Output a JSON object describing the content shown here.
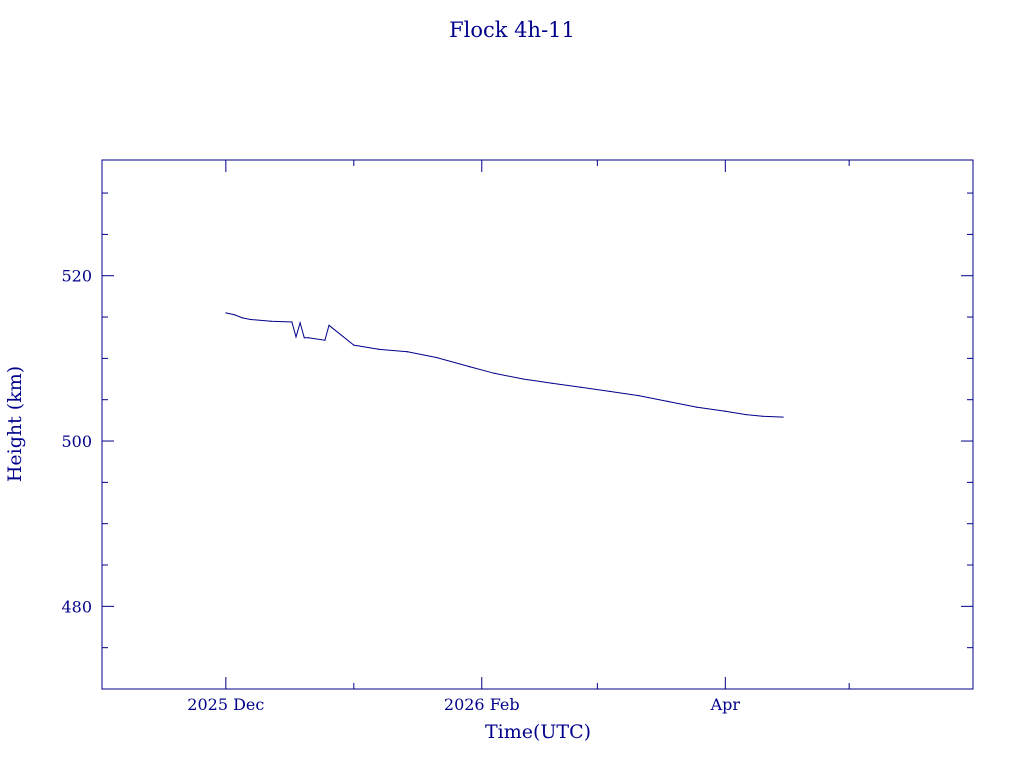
{
  "chart_data": {
    "type": "line",
    "title": "Flock 4h-11",
    "xlabel": "Time(UTC)",
    "ylabel": "Height (km)",
    "x_axis_type": "date",
    "xlim": [
      "2025-11-01",
      "2026-05-31"
    ],
    "ylim": [
      470,
      534
    ],
    "x_ticks": [
      {
        "value": "2025-12-01",
        "label": "2025 Dec"
      },
      {
        "value": "2026-02-01",
        "label": "2026 Feb"
      },
      {
        "value": "2026-04-01",
        "label": "Apr"
      }
    ],
    "y_ticks": [
      {
        "value": 480,
        "label": "480"
      },
      {
        "value": 500,
        "label": "500"
      },
      {
        "value": 520,
        "label": "520"
      }
    ],
    "grid": false,
    "color": "#00008b",
    "series": [
      {
        "x": [
          "2025-12-01",
          "2025-12-03",
          "2025-12-05",
          "2025-12-07",
          "2025-12-12",
          "2025-12-17",
          "2025-12-18",
          "2025-12-19",
          "2025-12-20",
          "2025-12-21",
          "2025-12-25",
          "2025-12-26",
          "2026-01-01",
          "2026-01-07",
          "2026-01-14",
          "2026-01-21",
          "2026-01-29",
          "2026-02-04",
          "2026-02-11",
          "2026-02-18",
          "2026-02-25",
          "2026-03-04",
          "2026-03-11",
          "2026-03-18",
          "2026-03-25",
          "2026-04-01",
          "2026-04-06",
          "2026-04-10",
          "2026-04-15"
        ],
        "y": [
          515.5,
          515.3,
          514.9,
          514.7,
          514.5,
          514.4,
          512.6,
          514.3,
          512.5,
          512.5,
          512.2,
          514.0,
          511.6,
          511.1,
          510.8,
          510.1,
          509.0,
          508.2,
          507.5,
          507.0,
          506.5,
          506.0,
          505.5,
          504.8,
          504.1,
          503.6,
          503.2,
          503.0,
          502.9
        ]
      }
    ]
  }
}
